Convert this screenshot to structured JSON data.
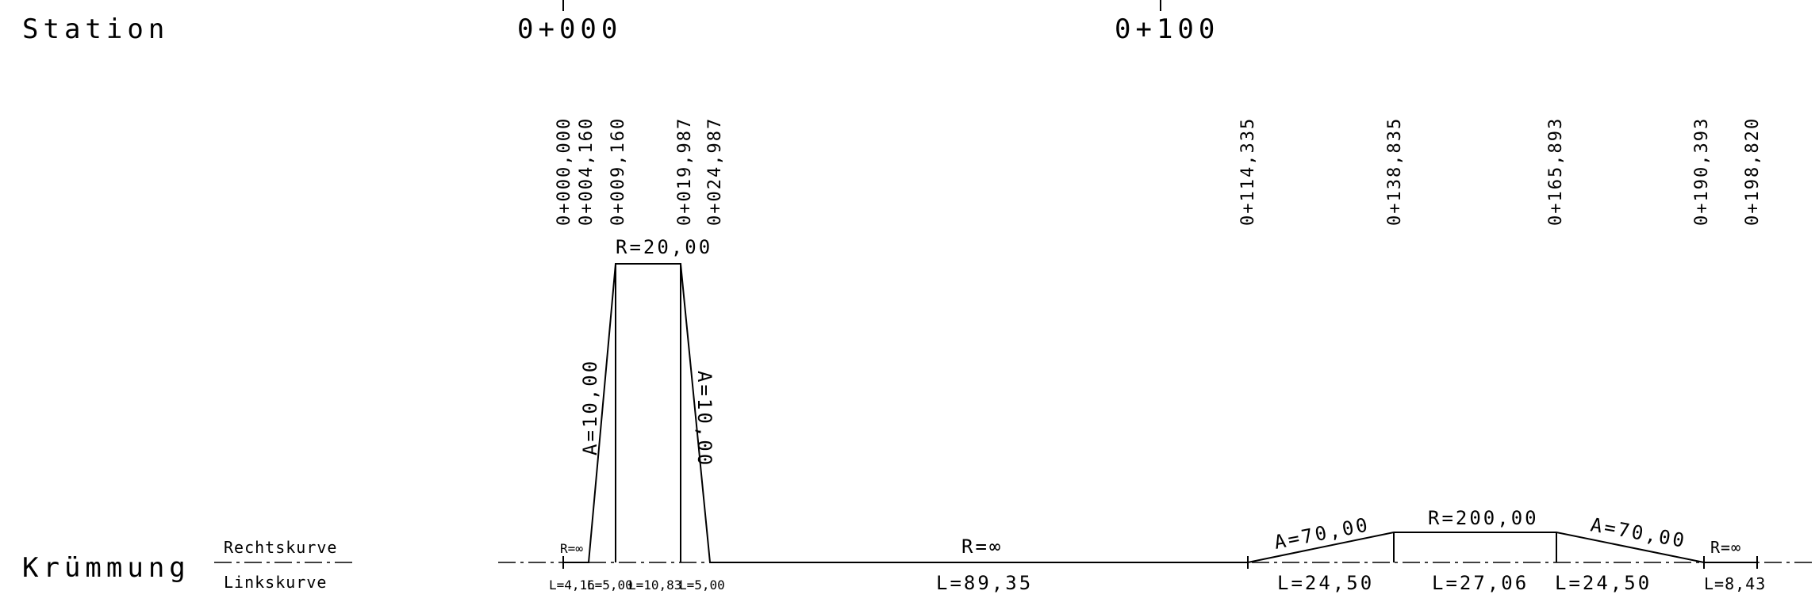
{
  "labels": {
    "station": "Station",
    "kruemmung": "Krümmung",
    "rechtskurve": "Rechtskurve",
    "linkskurve": "Linkskurve"
  },
  "station_ticks": [
    "0+000",
    "0+100"
  ],
  "stations": [
    "0+000,000",
    "0+004,160",
    "0+009,160",
    "0+019,987",
    "0+024,987",
    "0+114,335",
    "0+138,835",
    "0+165,893",
    "0+190,393",
    "0+198,820"
  ],
  "curvature": {
    "radius_labels": [
      "R=20,00",
      "R=∞",
      "R=200,00",
      "R=∞",
      "R=∞"
    ],
    "clothoid_labels": [
      "A=10,00",
      "A=10,00",
      "A=70,00",
      "A=70,00"
    ],
    "lengths": [
      "L=4,16",
      "L=5,00",
      "L=10,83",
      "L=5,00",
      "L=89,35",
      "L=24,50",
      "L=27,06",
      "L=24,50",
      "L=8,43"
    ]
  }
}
